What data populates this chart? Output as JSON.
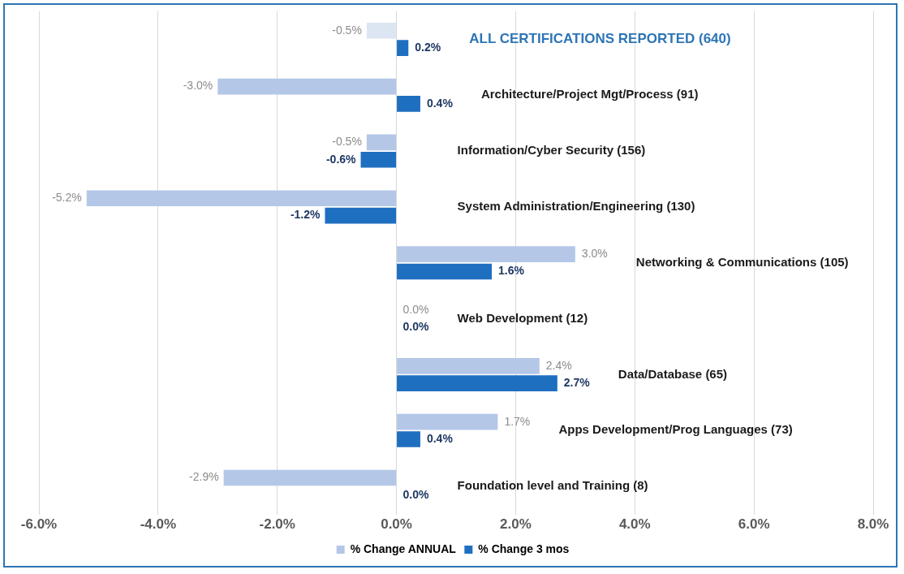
{
  "chart_data": {
    "type": "bar",
    "orientation": "horizontal",
    "categories": [
      "ALL CERTIFICATIONS REPORTED (640)",
      "Architecture/Project Mgt/Process (91)",
      "Information/Cyber Security (156)",
      "System Administration/Engineering (130)",
      "Networking & Communications (105)",
      "Web Development (12)",
      "Data/Database (65)",
      "Apps Development/Prog Languages (73)",
      "Foundation level and Training (8)"
    ],
    "series": [
      {
        "name": "% Change ANNUAL",
        "color": "#b4c7e7",
        "colors": [
          "#dce5f2",
          "#b4c7e7",
          "#b4c7e7",
          "#b4c7e7",
          "#b4c7e7",
          "#b4c7e7",
          "#b4c7e7",
          "#b4c7e7",
          "#b4c7e7"
        ],
        "values": [
          -0.5,
          -3.0,
          -0.5,
          -5.2,
          3.0,
          0.0,
          2.4,
          1.7,
          -2.9
        ],
        "value_labels": [
          "-0.5%",
          "-3.0%",
          "-0.5%",
          "-5.2%",
          "3.0%",
          "0.0%",
          "2.4%",
          "1.7%",
          "-2.9%"
        ]
      },
      {
        "name": "% Change 3 mos",
        "color": "#1f6fc0",
        "values": [
          0.2,
          0.4,
          -0.6,
          -1.2,
          1.6,
          0.0,
          2.7,
          0.4,
          0.0
        ],
        "value_labels": [
          "0.2%",
          "0.4%",
          "-0.6%",
          "-1.2%",
          "1.6%",
          "0.0%",
          "2.7%",
          "0.4%",
          "0.0%"
        ]
      }
    ],
    "xlim": [
      -6,
      8
    ],
    "xticks": [
      {
        "value": -6,
        "label": "-6.0%"
      },
      {
        "value": -4,
        "label": "-4.0%"
      },
      {
        "value": -2,
        "label": "-2.0%"
      },
      {
        "value": 0,
        "label": "0.0%"
      },
      {
        "value": 2,
        "label": "2.0%"
      },
      {
        "value": 4,
        "label": "4.0%"
      },
      {
        "value": 6,
        "label": "6.0%"
      },
      {
        "value": 8,
        "label": "8.0%"
      }
    ],
    "grid": "x",
    "legend": "bottom",
    "tick_labels": "x"
  }
}
